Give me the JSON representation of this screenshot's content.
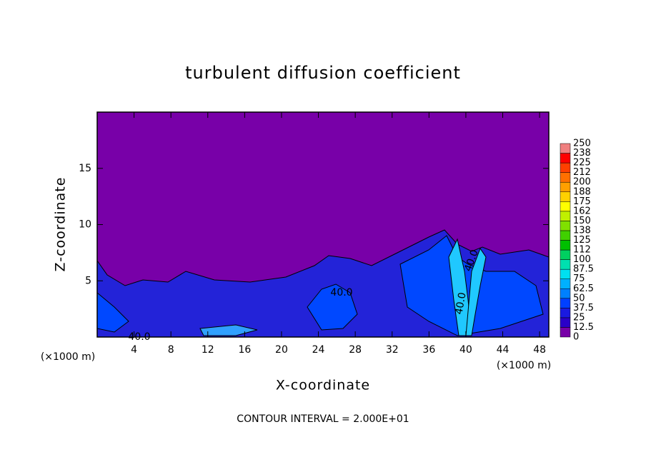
{
  "chart_data": {
    "type": "contour",
    "title": "turbulent diffusion coefficient",
    "x_label": "X-coordinate",
    "y_label": "Z-coordinate",
    "x_unit": "(×1000 m)",
    "footer": "CONTOUR INTERVAL = 2.000E+01",
    "contour_labels": [
      "40.0",
      "40.0",
      "40.0",
      "40.0"
    ],
    "xlim": [
      0,
      49
    ],
    "ylim": [
      0,
      20
    ],
    "xticks": [
      4,
      8,
      12,
      16,
      20,
      24,
      28,
      32,
      36,
      40,
      44,
      48
    ],
    "yticks": [
      5,
      10,
      15
    ],
    "colorbar": {
      "levels": [
        0,
        12.5,
        25,
        37.5,
        50,
        62.5,
        75,
        87.5,
        100,
        112,
        125,
        138,
        150,
        162,
        175,
        188,
        200,
        212,
        225,
        238,
        250
      ],
      "colors": [
        "#7800a8",
        "#2a00c8",
        "#1a1ae0",
        "#0040ff",
        "#0080ff",
        "#00b0ff",
        "#00e0f0",
        "#00e0b0",
        "#00d060",
        "#00c000",
        "#40d000",
        "#80e000",
        "#c0f000",
        "#ffff00",
        "#ffd000",
        "#ffa000",
        "#ff7000",
        "#ff4000",
        "#ff0000",
        "#f08080"
      ]
    }
  }
}
